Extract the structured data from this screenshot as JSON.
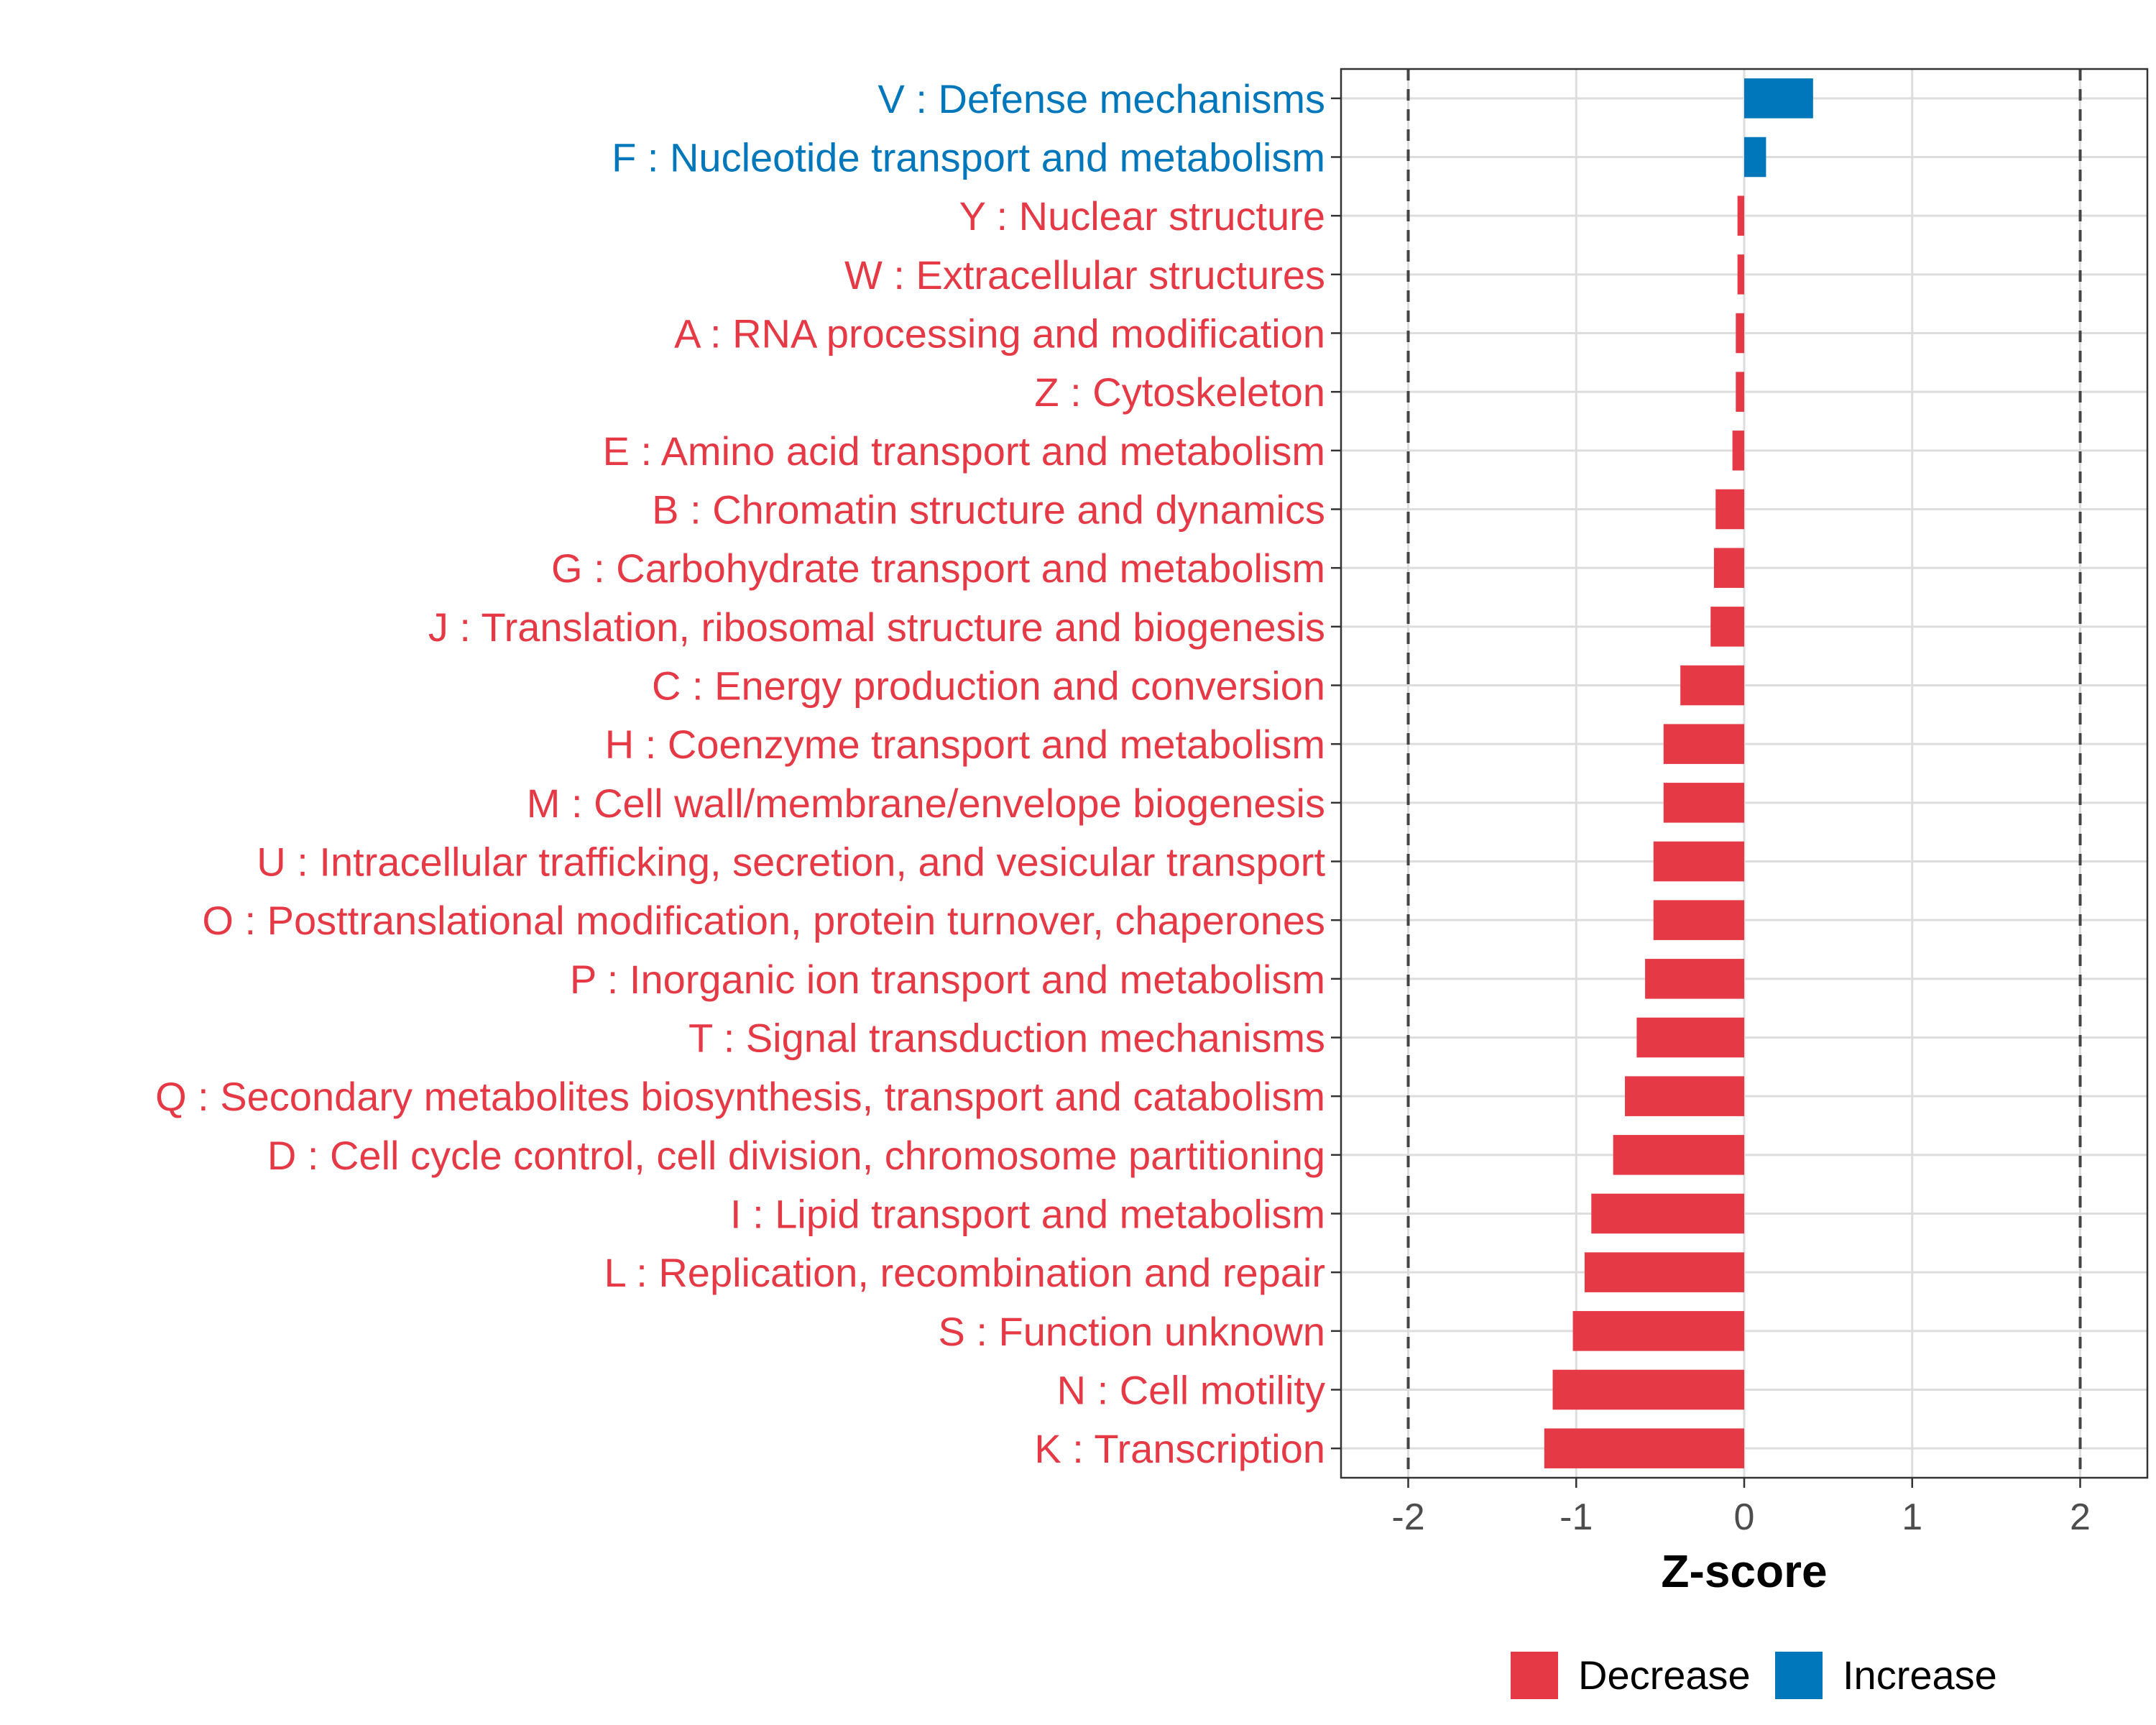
{
  "chart_data": {
    "type": "bar",
    "orientation": "horizontal",
    "xlabel": "Z-score",
    "xlim": [
      -2.4,
      2.4
    ],
    "xticks": [
      -2,
      -1,
      0,
      1,
      2
    ],
    "xtick_labels": [
      "-2",
      "-1",
      "0",
      "1",
      "2"
    ],
    "reference_lines": [
      -2,
      2
    ],
    "grid": true,
    "legend_position": "bottom",
    "colors": {
      "Decrease": "#E63946",
      "Increase": "#0077BB"
    },
    "legend": [
      {
        "name": "Decrease",
        "color": "#E63946"
      },
      {
        "name": "Increase",
        "color": "#0077BB"
      }
    ],
    "categories": [
      "V : Defense mechanisms",
      "F : Nucleotide transport and metabolism",
      "Y : Nuclear structure",
      "W : Extracellular structures",
      "A : RNA processing and modification",
      "Z : Cytoskeleton",
      "E : Amino acid transport and metabolism",
      "B : Chromatin structure and dynamics",
      "G : Carbohydrate transport and metabolism",
      "J : Translation, ribosomal structure and biogenesis",
      "C : Energy production and conversion",
      "H : Coenzyme transport and metabolism",
      "M : Cell wall/membrane/envelope biogenesis",
      "U : Intracellular trafficking, secretion, and vesicular transport",
      "O : Posttranslational modification, protein turnover, chaperones",
      "P : Inorganic ion transport and metabolism",
      "T : Signal transduction mechanisms",
      "Q : Secondary metabolites biosynthesis, transport and catabolism",
      "D : Cell cycle control, cell division, chromosome partitioning",
      "I : Lipid transport and metabolism",
      "L : Replication, recombination and repair",
      "S : Function unknown",
      "N : Cell motility",
      "K : Transcription"
    ],
    "values": [
      0.41,
      0.13,
      -0.04,
      -0.04,
      -0.05,
      -0.05,
      -0.07,
      -0.17,
      -0.18,
      -0.2,
      -0.38,
      -0.48,
      -0.48,
      -0.54,
      -0.54,
      -0.59,
      -0.64,
      -0.71,
      -0.78,
      -0.91,
      -0.95,
      -1.02,
      -1.14,
      -1.19
    ],
    "groups": [
      "Increase",
      "Increase",
      "Decrease",
      "Decrease",
      "Decrease",
      "Decrease",
      "Decrease",
      "Decrease",
      "Decrease",
      "Decrease",
      "Decrease",
      "Decrease",
      "Decrease",
      "Decrease",
      "Decrease",
      "Decrease",
      "Decrease",
      "Decrease",
      "Decrease",
      "Decrease",
      "Decrease",
      "Decrease",
      "Decrease",
      "Decrease"
    ]
  }
}
